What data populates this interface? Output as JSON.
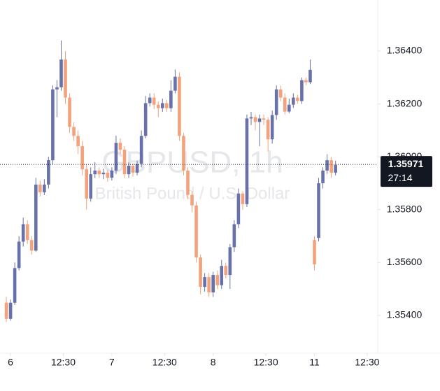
{
  "chart_data": {
    "type": "candlestick",
    "title": "GBPUSD, 1h",
    "subtitle": "British Pound / U.S. Dollar",
    "last_price": 1.35971,
    "countdown": "27:14",
    "up_color": "#6871aa",
    "down_color": "#f3a27c",
    "xlim": [
      -1.5,
      88
    ],
    "ylim": [
      1.3527,
      1.3658
    ],
    "yticks": [
      {
        "value": 1.354,
        "label": "1.35400"
      },
      {
        "value": 1.356,
        "label": "1.35600"
      },
      {
        "value": 1.358,
        "label": "1.35800"
      },
      {
        "value": 1.36,
        "label": "1.36000"
      },
      {
        "value": 1.362,
        "label": "1.36200"
      },
      {
        "value": 1.364,
        "label": "1.36400"
      }
    ],
    "xticks": [
      {
        "value": 1,
        "label": "6"
      },
      {
        "value": 13.5,
        "label": "12:30"
      },
      {
        "value": 25,
        "label": "7"
      },
      {
        "value": 37.5,
        "label": "12:30"
      },
      {
        "value": 49,
        "label": "8"
      },
      {
        "value": 61.5,
        "label": "12:30"
      },
      {
        "value": 73,
        "label": "11"
      },
      {
        "value": 85.5,
        "label": "12:30"
      }
    ],
    "x": [
      0,
      1,
      2,
      3,
      4,
      5,
      6,
      7,
      8,
      9,
      10,
      11,
      12,
      13,
      14,
      15,
      16,
      17,
      18,
      19,
      20,
      21,
      22,
      23,
      24,
      25,
      26,
      27,
      28,
      29,
      30,
      31,
      32,
      33,
      34,
      35,
      36,
      37,
      38,
      39,
      40,
      41,
      42,
      43,
      44,
      45,
      46,
      47,
      48,
      49,
      50,
      51,
      52,
      53,
      54,
      55,
      56,
      57,
      58,
      59,
      60,
      61,
      62,
      63,
      64,
      65,
      66,
      67,
      68,
      69,
      70,
      71,
      72,
      73,
      74,
      75,
      76,
      77,
      78
    ],
    "open": [
      1.35448,
      1.35387,
      1.35448,
      1.35579,
      1.35679,
      1.35745,
      1.35685,
      1.35645,
      1.35895,
      1.35866,
      1.35895,
      1.35987,
      1.36255,
      1.36263,
      1.36368,
      1.36224,
      1.36113,
      1.36079,
      1.3604,
      1.35953,
      1.35842,
      1.35934,
      1.35948,
      1.35934,
      1.3594,
      1.35921,
      1.35948,
      1.36053,
      1.36027,
      1.35934,
      1.35966,
      1.3594,
      1.35974,
      1.36079,
      1.36203,
      1.36224,
      1.36197,
      1.36184,
      1.36203,
      1.36184,
      1.3625,
      1.36303,
      1.36079,
      1.35948,
      1.35856,
      1.35816,
      1.35619,
      1.35508,
      1.35545,
      1.35487,
      1.35553,
      1.35514,
      1.35587,
      1.35553,
      1.35658,
      1.35745,
      1.35861,
      1.35821,
      1.36145,
      1.3615,
      1.36132,
      1.36145,
      1.3614,
      1.36066,
      1.36158,
      1.36255,
      1.36224,
      1.36171,
      1.36197,
      1.36224,
      1.36211,
      1.3629,
      1.36282,
      1.35685,
      1.35693,
      1.359,
      1.35948,
      1.35987,
      1.3594
    ],
    "high": [
      1.3547,
      1.3546,
      1.356,
      1.357,
      1.3577,
      1.3576,
      1.357,
      1.3592,
      1.3591,
      1.35915,
      1.36,
      1.3627,
      1.3629,
      1.3644,
      1.364,
      1.3624,
      1.3613,
      1.361,
      1.3606,
      1.3597,
      1.3596,
      1.3598,
      1.3596,
      1.35955,
      1.3595,
      1.3596,
      1.3608,
      1.3607,
      1.3604,
      1.3598,
      1.35975,
      1.35985,
      1.361,
      1.3623,
      1.3624,
      1.3624,
      1.3621,
      1.3622,
      1.36215,
      1.3629,
      1.3633,
      1.3632,
      1.3609,
      1.3596,
      1.3587,
      1.3583,
      1.3563,
      1.3556,
      1.3556,
      1.35565,
      1.3557,
      1.3561,
      1.356,
      1.3567,
      1.3576,
      1.3588,
      1.3587,
      1.3616,
      1.3617,
      1.3616,
      1.3616,
      1.3616,
      1.3615,
      1.36175,
      1.3627,
      1.3627,
      1.3624,
      1.3622,
      1.3624,
      1.36235,
      1.363,
      1.363,
      1.36368,
      1.357,
      1.3592,
      1.3596,
      1.3601,
      1.36,
      1.35985
    ],
    "low": [
      1.35375,
      1.3538,
      1.3544,
      1.3557,
      1.3566,
      1.3567,
      1.3563,
      1.3564,
      1.3585,
      1.35855,
      1.3588,
      1.3597,
      1.3615,
      1.3625,
      1.362,
      1.3609,
      1.3606,
      1.3601,
      1.3593,
      1.358,
      1.3583,
      1.3592,
      1.3592,
      1.35915,
      1.35905,
      1.3591,
      1.35935,
      1.3601,
      1.3592,
      1.3592,
      1.35925,
      1.3593,
      1.3596,
      1.3607,
      1.3619,
      1.3618,
      1.3615,
      1.3617,
      1.3617,
      1.3617,
      1.3624,
      1.3606,
      1.3593,
      1.3584,
      1.3579,
      1.356,
      1.3548,
      1.3549,
      1.3547,
      1.3547,
      1.355,
      1.355,
      1.3554,
      1.355,
      1.3564,
      1.3573,
      1.358,
      1.3581,
      1.3612,
      1.361,
      1.3604,
      1.3612,
      1.3602,
      1.3605,
      1.3614,
      1.3621,
      1.3616,
      1.36165,
      1.36185,
      1.362,
      1.362,
      1.3627,
      1.36275,
      1.3557,
      1.3568,
      1.3588,
      1.35935,
      1.3592,
      1.3593
    ],
    "close": [
      1.35387,
      1.35448,
      1.35579,
      1.35679,
      1.35745,
      1.35685,
      1.35645,
      1.35895,
      1.35866,
      1.35895,
      1.35987,
      1.36255,
      1.36263,
      1.36368,
      1.36224,
      1.36113,
      1.36079,
      1.3604,
      1.35953,
      1.35842,
      1.35934,
      1.35948,
      1.35934,
      1.3594,
      1.35921,
      1.35948,
      1.36053,
      1.36027,
      1.35934,
      1.35966,
      1.3594,
      1.35974,
      1.36079,
      1.36203,
      1.36224,
      1.36197,
      1.36184,
      1.36203,
      1.36184,
      1.3625,
      1.36303,
      1.36079,
      1.35948,
      1.35856,
      1.35816,
      1.35619,
      1.35508,
      1.35545,
      1.35487,
      1.35553,
      1.35514,
      1.35587,
      1.35553,
      1.35658,
      1.35745,
      1.35861,
      1.35821,
      1.36145,
      1.3615,
      1.36132,
      1.36145,
      1.3614,
      1.36066,
      1.36158,
      1.36255,
      1.36224,
      1.36171,
      1.36197,
      1.36224,
      1.36211,
      1.3629,
      1.36282,
      1.36329,
      1.35593,
      1.359,
      1.35948,
      1.35987,
      1.3594,
      1.35969
    ]
  }
}
